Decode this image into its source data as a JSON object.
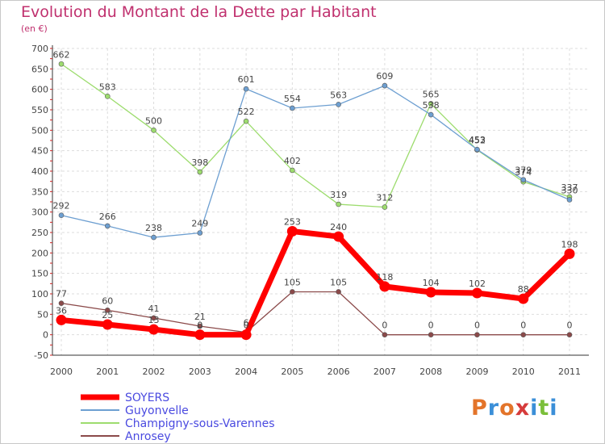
{
  "title": "Evolution du Montant de la Dette par Habitant",
  "subtitle": "(en €)",
  "logo": {
    "text": "Proxiti",
    "colors": [
      "#e3742a",
      "#3b8fd8",
      "#e3742a",
      "#d63b3b",
      "#3b8fd8",
      "#7bbf3a",
      "#3b8fd8"
    ]
  },
  "chart_data": {
    "type": "line",
    "title": "Evolution du Montant de la Dette par Habitant",
    "ylabel": "(en €)",
    "xlabel": "",
    "x": [
      "2000",
      "2001",
      "2002",
      "2003",
      "2004",
      "2005",
      "2006",
      "2007",
      "2008",
      "2009",
      "2010",
      "2011"
    ],
    "ylim": [
      -50,
      700
    ],
    "yticks": [
      -50,
      0,
      50,
      100,
      150,
      200,
      250,
      300,
      350,
      400,
      450,
      500,
      550,
      600,
      650,
      700
    ],
    "grid": true,
    "legend_position": "bottom-left",
    "series": [
      {
        "name": "SOYERS",
        "color": "#ff0000",
        "values": [
          36,
          25,
          13,
          0,
          0,
          253,
          240,
          118,
          104,
          102,
          88,
          198
        ]
      },
      {
        "name": "Guyonvelle",
        "color": "#6d9fd1",
        "values": [
          292,
          266,
          238,
          249,
          601,
          554,
          563,
          609,
          538,
          453,
          379,
          330
        ]
      },
      {
        "name": "Champigny-sous-Varennes",
        "color": "#9ddc6e",
        "values": [
          662,
          583,
          500,
          398,
          522,
          402,
          319,
          312,
          565,
          452,
          374,
          337
        ]
      },
      {
        "name": "Anrosey",
        "color": "#8b4a4a",
        "values": [
          77,
          60,
          41,
          21,
          6,
          105,
          105,
          0,
          0,
          0,
          0,
          0
        ]
      }
    ]
  }
}
